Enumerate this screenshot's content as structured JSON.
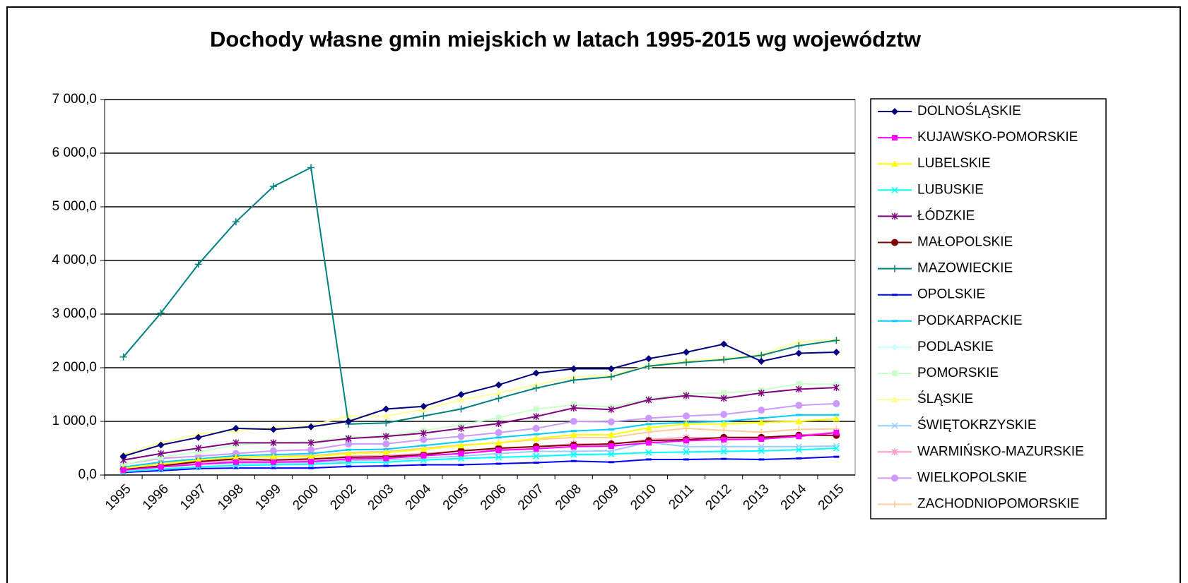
{
  "chart_data": {
    "type": "line",
    "title": "Dochody własne gmin miejskich w latach 1995-2015 wg województw",
    "categories": [
      "1995",
      "1996",
      "1997",
      "1998",
      "1999",
      "2000",
      "2002",
      "2003",
      "2004",
      "2005",
      "2006",
      "2007",
      "2008",
      "2009",
      "2010",
      "2011",
      "2012",
      "2013",
      "2014",
      "2015"
    ],
    "ylim": [
      0,
      7000
    ],
    "yticks": [
      {
        "value": 0,
        "label": "0,0"
      },
      {
        "value": 1000,
        "label": "1 000,0"
      },
      {
        "value": 2000,
        "label": "2 000,0"
      },
      {
        "value": 3000,
        "label": "3 000,0"
      },
      {
        "value": 4000,
        "label": "4 000,0"
      },
      {
        "value": 5000,
        "label": "5 000,0"
      },
      {
        "value": 6000,
        "label": "6 000,0"
      },
      {
        "value": 7000,
        "label": "7 000,0"
      }
    ],
    "grid": true,
    "legend": "right",
    "series": [
      {
        "name": "DOLNOŚLĄSKIE",
        "color": "#000080",
        "marker": "diamond",
        "values": [
          350,
          560,
          700,
          870,
          850,
          900,
          1000,
          1230,
          1280,
          1500,
          1680,
          1900,
          1980,
          1980,
          2170,
          2290,
          2440,
          2120,
          2270,
          2290
        ]
      },
      {
        "name": "KUJAWSKO-POMORSKIE",
        "color": "#ff00ff",
        "marker": "square",
        "values": [
          90,
          150,
          200,
          240,
          240,
          250,
          300,
          310,
          360,
          400,
          460,
          490,
          530,
          540,
          600,
          640,
          660,
          670,
          720,
          790
        ]
      },
      {
        "name": "LUBELSKIE",
        "color": "#ffff00",
        "marker": "triangle",
        "values": [
          130,
          200,
          280,
          330,
          340,
          340,
          400,
          420,
          480,
          550,
          600,
          680,
          750,
          750,
          880,
          950,
          950,
          980,
          1000,
          1050
        ]
      },
      {
        "name": "LUBUSKIE",
        "color": "#00ffff",
        "marker": "x",
        "values": [
          60,
          110,
          150,
          180,
          190,
          200,
          230,
          240,
          280,
          310,
          330,
          350,
          380,
          390,
          420,
          430,
          440,
          450,
          470,
          500
        ]
      },
      {
        "name": "ŁÓDZKIE",
        "color": "#800080",
        "marker": "star",
        "values": [
          280,
          400,
          500,
          600,
          600,
          600,
          680,
          720,
          780,
          870,
          960,
          1090,
          1250,
          1220,
          1400,
          1480,
          1430,
          1530,
          1600,
          1630
        ]
      },
      {
        "name": "MAŁOPOLSKIE",
        "color": "#800000",
        "marker": "circle",
        "values": [
          100,
          170,
          250,
          300,
          280,
          300,
          330,
          340,
          380,
          450,
          500,
          530,
          560,
          580,
          640,
          660,
          700,
          700,
          740,
          740
        ]
      },
      {
        "name": "MAZOWIECKIE",
        "color": "#008080",
        "marker": "plus",
        "values": [
          2200,
          3020,
          3930,
          4720,
          5380,
          5730,
          950,
          970,
          1100,
          1230,
          1430,
          1620,
          1770,
          1830,
          2030,
          2100,
          2150,
          2230,
          2410,
          2510
        ]
      },
      {
        "name": "OPOLSKIE",
        "color": "#0000ff",
        "marker": "dash",
        "values": [
          50,
          80,
          120,
          130,
          130,
          130,
          160,
          170,
          190,
          190,
          210,
          230,
          260,
          240,
          290,
          290,
          300,
          290,
          310,
          340
        ]
      },
      {
        "name": "PODKARPACKIE",
        "color": "#00ccff",
        "marker": "dash",
        "values": [
          150,
          240,
          300,
          360,
          380,
          400,
          470,
          480,
          550,
          620,
          700,
          760,
          820,
          850,
          950,
          980,
          1000,
          1060,
          1120,
          1120
        ]
      },
      {
        "name": "PODLASKIE",
        "color": "#ccffff",
        "marker": "diamond",
        "values": [
          80,
          130,
          160,
          190,
          200,
          200,
          230,
          240,
          270,
          290,
          320,
          350,
          360,
          380,
          420,
          420,
          430,
          450,
          470,
          490
        ]
      },
      {
        "name": "POMORSKIE",
        "color": "#ccffcc",
        "marker": "square",
        "values": [
          200,
          330,
          430,
          560,
          600,
          620,
          700,
          730,
          830,
          930,
          1070,
          1230,
          1310,
          1270,
          1420,
          1510,
          1530,
          1580,
          1700,
          1690
        ]
      },
      {
        "name": "ŚLĄSKIE",
        "color": "#ffff99",
        "marker": "triangle",
        "values": [
          380,
          600,
          760,
          830,
          880,
          920,
          1100,
          1100,
          1220,
          1400,
          1530,
          1680,
          1830,
          1850,
          2050,
          2130,
          2170,
          2250,
          2480,
          2530
        ]
      },
      {
        "name": "ŚWIĘTOKRZYSKIE",
        "color": "#99ccff",
        "marker": "x",
        "values": [
          100,
          160,
          200,
          220,
          220,
          230,
          270,
          280,
          320,
          350,
          400,
          440,
          440,
          450,
          610,
          530,
          530,
          530,
          530,
          540
        ]
      },
      {
        "name": "WARMIŃSKO-MAZURSKIE",
        "color": "#ff99cc",
        "marker": "star",
        "values": [
          100,
          170,
          230,
          270,
          270,
          280,
          350,
          360,
          400,
          450,
          480,
          530,
          580,
          570,
          660,
          700,
          690,
          700,
          740,
          800
        ]
      },
      {
        "name": "WIELKOPOLSKIE",
        "color": "#cc99ff",
        "marker": "circle",
        "values": [
          200,
          310,
          350,
          400,
          450,
          470,
          580,
          580,
          660,
          720,
          790,
          870,
          1000,
          990,
          1060,
          1100,
          1130,
          1210,
          1300,
          1330
        ]
      },
      {
        "name": "ZACHODNIOPOMORSKIE",
        "color": "#ffcc99",
        "marker": "plus",
        "values": [
          150,
          230,
          290,
          330,
          350,
          360,
          420,
          440,
          500,
          560,
          600,
          660,
          700,
          700,
          800,
          870,
          830,
          800,
          850,
          860
        ]
      }
    ]
  }
}
